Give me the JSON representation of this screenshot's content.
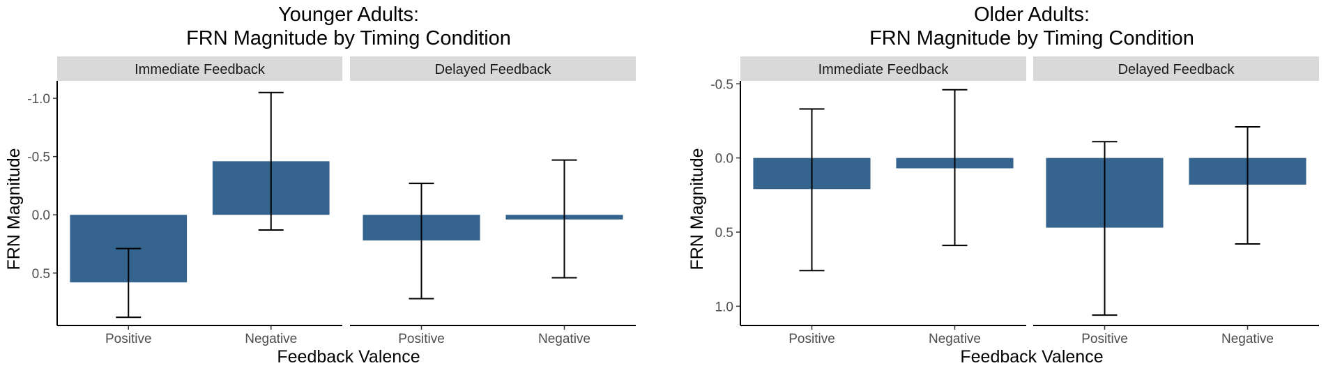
{
  "chart_data": [
    {
      "type": "bar",
      "title_lines": [
        "Younger Adults:",
        "FRN Magnitude by Timing Condition"
      ],
      "xlabel": "Feedback Valence",
      "ylabel": "FRN Magnitude",
      "y_reversed": true,
      "ylim": [
        -1.15,
        0.95
      ],
      "yticks": [
        -1.0,
        -0.5,
        0.0,
        0.5
      ],
      "ytick_labels": [
        "-1.0",
        "-0.5",
        "0.0",
        "0.5"
      ],
      "facets": [
        {
          "label": "Immediate Feedback",
          "categories": [
            "Positive",
            "Negative"
          ],
          "values": [
            0.58,
            -0.46
          ],
          "error_low": [
            0.88,
            0.13
          ],
          "error_high": [
            0.29,
            -1.05
          ]
        },
        {
          "label": "Delayed Feedback",
          "categories": [
            "Positive",
            "Negative"
          ],
          "values": [
            0.22,
            0.04
          ],
          "error_low": [
            0.72,
            0.54
          ],
          "error_high": [
            -0.27,
            -0.47
          ]
        }
      ],
      "bar_color": "#35648e",
      "strip_color": "#d9d9d9",
      "grid": false
    },
    {
      "type": "bar",
      "title_lines": [
        "Older Adults:",
        "FRN Magnitude by Timing Condition"
      ],
      "xlabel": "Feedback Valence",
      "ylabel": "FRN Magnitude",
      "y_reversed": true,
      "ylim": [
        -0.52,
        1.13
      ],
      "yticks": [
        -0.5,
        0.0,
        0.5,
        1.0
      ],
      "ytick_labels": [
        "-0.5",
        "0.0",
        "0.5",
        "1.0"
      ],
      "facets": [
        {
          "label": "Immediate Feedback",
          "categories": [
            "Positive",
            "Negative"
          ],
          "values": [
            0.21,
            0.07
          ],
          "error_low": [
            0.76,
            0.59
          ],
          "error_high": [
            -0.33,
            -0.46
          ]
        },
        {
          "label": "Delayed Feedback",
          "categories": [
            "Positive",
            "Negative"
          ],
          "values": [
            0.47,
            0.18
          ],
          "error_low": [
            1.06,
            0.58
          ],
          "error_high": [
            -0.11,
            -0.21
          ]
        }
      ],
      "bar_color": "#35648e",
      "strip_color": "#d9d9d9",
      "grid": false
    }
  ]
}
